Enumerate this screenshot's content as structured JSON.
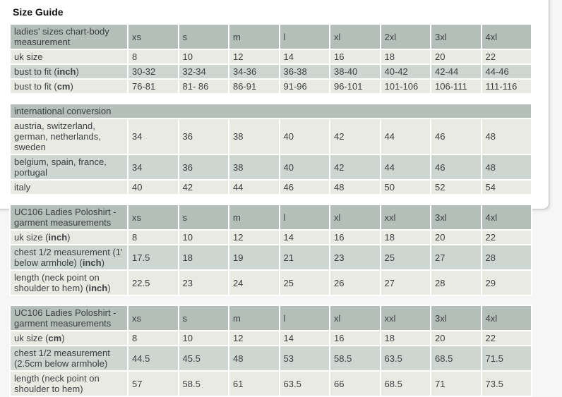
{
  "page": {
    "title": "Size Guide"
  },
  "colors": {
    "header_bg": "#b3bfb8",
    "row_dark_bg": "#cdd6d0",
    "row_light_bg": "#e9ebe3",
    "text": "#3c4043",
    "title": "#111111",
    "page_bg": "#f6f6f6",
    "panel_bg": "#ffffff",
    "panel_border": "#c9c9c9"
  },
  "tables": [
    {
      "name": "ladies-sizes-body-measurement",
      "header_label": "ladies' sizes chart-body measurement",
      "header_span_all": false,
      "columns": [
        "xs",
        "s",
        "m",
        "l",
        "xl",
        "2xl",
        "3xl",
        "4xl"
      ],
      "rows": [
        {
          "label_pre": "uk size",
          "label_bold": "",
          "label_post": "",
          "values": [
            "8",
            "10",
            "12",
            "14",
            "16",
            "18",
            "20",
            "22"
          ]
        },
        {
          "label_pre": "bust to fit (",
          "label_bold": "inch",
          "label_post": ")",
          "values": [
            "30-32",
            "32-34",
            "34-36",
            "36-38",
            "38-40",
            "40-42",
            "42-44",
            "44-46"
          ]
        },
        {
          "label_pre": "bust to fit (",
          "label_bold": "cm",
          "label_post": ")",
          "values": [
            "76-81",
            "81- 86",
            "86-91",
            "91-96",
            "96-101",
            "101-106",
            "106-111",
            "111-116"
          ]
        }
      ]
    },
    {
      "name": "international-conversion",
      "header_label": "international conversion",
      "header_span_all": true,
      "columns": [],
      "rows": [
        {
          "label_pre": "austria, switzerland, german, netherlands, sweden",
          "label_bold": "",
          "label_post": "",
          "values": [
            "34",
            "36",
            "38",
            "40",
            "42",
            "44",
            "46",
            "48"
          ]
        },
        {
          "label_pre": "belgium, spain, france, portugal",
          "label_bold": "",
          "label_post": "",
          "values": [
            "34",
            "36",
            "38",
            "40",
            "42",
            "44",
            "46",
            "48"
          ]
        },
        {
          "label_pre": "italy",
          "label_bold": "",
          "label_post": "",
          "values": [
            "40",
            "42",
            "44",
            "46",
            "48",
            "50",
            "52",
            "54"
          ]
        }
      ]
    },
    {
      "name": "uc106-garment-measurements-inch",
      "header_label": "UC106 Ladies Poloshirt - garment measurements",
      "header_span_all": false,
      "columns": [
        "xs",
        "s",
        "m",
        "l",
        "xl",
        "xxl",
        "3xl",
        "4xl"
      ],
      "rows": [
        {
          "label_pre": "uk size (",
          "label_bold": "inch",
          "label_post": ")",
          "values": [
            "8",
            "10",
            "12",
            "14",
            "16",
            "18",
            "20",
            "22"
          ]
        },
        {
          "label_pre": "chest 1/2 measurement (1' below armhole) (",
          "label_bold": "inch",
          "label_post": ")",
          "values": [
            "17.5",
            "18",
            "19",
            "21",
            "23",
            "25",
            "27",
            "28"
          ]
        },
        {
          "label_pre": "length (neck point on shoulder to hem) (",
          "label_bold": "inch",
          "label_post": ")",
          "values": [
            "22.5",
            "23",
            "24",
            "25",
            "26",
            "27",
            "28",
            "29"
          ]
        }
      ]
    },
    {
      "name": "uc106-garment-measurements-cm",
      "header_label": "UC106 Ladies Poloshirt - garment measurements",
      "header_span_all": false,
      "columns": [
        "xs",
        "s",
        "m",
        "l",
        "xl",
        "xxl",
        "3xl",
        "4xl"
      ],
      "rows": [
        {
          "label_pre": "uk size (",
          "label_bold": "cm",
          "label_post": ")",
          "values": [
            "8",
            "10",
            "12",
            "14",
            "16",
            "18",
            "20",
            "22"
          ]
        },
        {
          "label_pre": "chest 1/2 measurement (2.5cm below armhole)",
          "label_bold": "",
          "label_post": "",
          "values": [
            "44.5",
            "45.5",
            "48",
            "53",
            "58.5",
            "63.5",
            "68.5",
            "71.5"
          ]
        },
        {
          "label_pre": "length (neck point on shoulder to hem)",
          "label_bold": "",
          "label_post": "",
          "values": [
            "57",
            "58.5",
            "61",
            "63.5",
            "66",
            "68.5",
            "71",
            "73.5"
          ]
        }
      ]
    }
  ]
}
